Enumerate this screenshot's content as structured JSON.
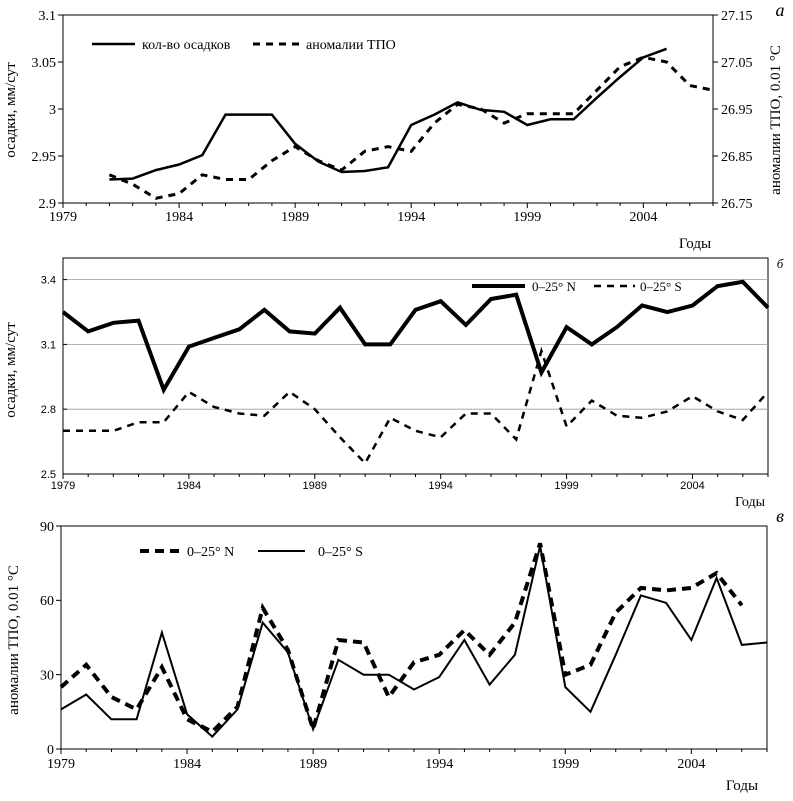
{
  "chart_data": [
    {
      "type": "line",
      "panel_letter": "а",
      "xlabel": "Годы",
      "ylabel": "осадки, мм/сут",
      "ylabel_right": "аномалии ТПО, 0.01 °С",
      "xlim": [
        1979,
        2007
      ],
      "ylim": [
        2.9,
        3.1
      ],
      "ylim_right": [
        26.75,
        27.15
      ],
      "x_ticks": [
        1979,
        1984,
        1989,
        1994,
        1999,
        2004
      ],
      "x_tick_labels": [
        "1979",
        "1984",
        "1989",
        "1994",
        "1999",
        "2004"
      ],
      "y_ticks": [
        2.9,
        2.95,
        3.0,
        3.05,
        3.1
      ],
      "y_tick_labels": [
        "2.9",
        "2.95",
        "3",
        "3.05",
        "3.1"
      ],
      "y_ticks_right": [
        26.75,
        26.85,
        26.95,
        27.05,
        27.15
      ],
      "y_tick_labels_right": [
        "26.75",
        "26.85",
        "26.95",
        "27.05",
        "27.15"
      ],
      "legend_position": "top-left",
      "series": [
        {
          "name": "кол-во осадков",
          "style": "solid",
          "axis": "left",
          "x": [
            1981,
            1982,
            1983,
            1984,
            1985,
            1986,
            1987,
            1988,
            1989,
            1990,
            1991,
            1992,
            1993,
            1994,
            1995,
            1996,
            1997,
            1998,
            1999,
            2000,
            2001,
            2002,
            2003,
            2004,
            2005
          ],
          "values": [
            2.925,
            2.926,
            2.935,
            2.941,
            2.951,
            2.994,
            2.994,
            2.994,
            2.963,
            2.944,
            2.933,
            2.934,
            2.938,
            2.983,
            2.994,
            3.007,
            2.999,
            2.997,
            2.983,
            2.989,
            2.989,
            3.012,
            3.034,
            3.055,
            3.064
          ]
        },
        {
          "name": "аномалии ТПО",
          "style": "dashed",
          "axis": "right",
          "x": [
            1981,
            1982,
            1983,
            1984,
            1985,
            1986,
            1987,
            1988,
            1989,
            1990,
            1991,
            1992,
            1993,
            1994,
            1995,
            1996,
            1997,
            1998,
            1999,
            2000,
            2001,
            2002,
            2003,
            2004,
            2005,
            2006,
            2007
          ],
          "values": [
            26.81,
            26.79,
            26.76,
            26.77,
            26.81,
            26.8,
            26.8,
            26.84,
            26.87,
            26.84,
            26.82,
            26.86,
            26.87,
            26.86,
            26.92,
            26.96,
            26.95,
            26.92,
            26.94,
            26.94,
            26.94,
            26.99,
            27.04,
            27.06,
            27.05,
            27.0,
            26.99
          ]
        }
      ]
    },
    {
      "type": "line",
      "panel_letter": "б",
      "xlabel": "Годы",
      "ylabel": "осадки, мм/сут",
      "xlim": [
        1979,
        2007
      ],
      "ylim": [
        2.5,
        3.5
      ],
      "x_ticks": [
        1979,
        1984,
        1989,
        1994,
        1999,
        2004
      ],
      "x_tick_labels": [
        "1979",
        "1984",
        "1989",
        "1994",
        "1999",
        "2004"
      ],
      "y_ticks": [
        2.5,
        2.8,
        3.1,
        3.4
      ],
      "y_tick_labels": [
        "2.5",
        "2.8",
        "3.1",
        "3.4"
      ],
      "grid": true,
      "legend_position": "top-right",
      "series": [
        {
          "name": "0–25° N",
          "style": "solid-thick",
          "x": [
            1979,
            1980,
            1981,
            1982,
            1983,
            1984,
            1985,
            1986,
            1987,
            1988,
            1989,
            1990,
            1991,
            1992,
            1993,
            1994,
            1995,
            1996,
            1997,
            1998,
            1999,
            2000,
            2001,
            2002,
            2003,
            2004,
            2005,
            2006,
            2007
          ],
          "values": [
            3.25,
            3.16,
            3.2,
            3.21,
            2.89,
            3.09,
            3.13,
            3.17,
            3.26,
            3.16,
            3.15,
            3.27,
            3.1,
            3.1,
            3.26,
            3.3,
            3.19,
            3.31,
            3.33,
            2.97,
            3.18,
            3.1,
            3.18,
            3.28,
            3.25,
            3.28,
            3.37,
            3.39,
            3.27
          ]
        },
        {
          "name": "0–25° S",
          "style": "dashed",
          "x": [
            1979,
            1980,
            1981,
            1982,
            1983,
            1984,
            1985,
            1986,
            1987,
            1988,
            1989,
            1990,
            1991,
            1992,
            1993,
            1994,
            1995,
            1996,
            1997,
            1998,
            1999,
            2000,
            2001,
            2002,
            2003,
            2004,
            2005,
            2006,
            2007
          ],
          "values": [
            2.7,
            2.7,
            2.7,
            2.74,
            2.74,
            2.88,
            2.81,
            2.78,
            2.77,
            2.88,
            2.8,
            2.67,
            2.55,
            2.76,
            2.7,
            2.67,
            2.78,
            2.78,
            2.66,
            3.07,
            2.72,
            2.84,
            2.77,
            2.76,
            2.79,
            2.86,
            2.79,
            2.75,
            2.88
          ]
        }
      ]
    },
    {
      "type": "line",
      "panel_letter": "в",
      "xlabel": "Годы",
      "ylabel": "аномалии ТПО, 0.01 °С",
      "xlim": [
        1979,
        2007
      ],
      "ylim": [
        0,
        90
      ],
      "x_ticks": [
        1979,
        1984,
        1989,
        1994,
        1999,
        2004
      ],
      "x_tick_labels": [
        "1979",
        "1984",
        "1989",
        "1994",
        "1999",
        "2004"
      ],
      "y_ticks": [
        0,
        30,
        60,
        90
      ],
      "y_tick_labels": [
        "0",
        "30",
        "60",
        "90"
      ],
      "legend_position": "top-left",
      "series": [
        {
          "name": "0–25° N",
          "style": "dashed-thick",
          "x": [
            1979,
            1980,
            1981,
            1982,
            1983,
            1984,
            1985,
            1986,
            1987,
            1988,
            1989,
            1990,
            1991,
            1992,
            1993,
            1994,
            1995,
            1996,
            1997,
            1998,
            1999,
            2000,
            2001,
            2002,
            2003,
            2004,
            2005,
            2006,
            2007
          ],
          "values": [
            25,
            34,
            21,
            16,
            33,
            12,
            7,
            17,
            57,
            40,
            8,
            44,
            43,
            21,
            35,
            38,
            48,
            38,
            51,
            83,
            30,
            34,
            55,
            65,
            64,
            65,
            71,
            58,
            null
          ]
        },
        {
          "name": "0–25° S",
          "style": "solid",
          "x": [
            1979,
            1980,
            1981,
            1982,
            1983,
            1984,
            1985,
            1986,
            1987,
            1988,
            1989,
            1990,
            1991,
            1992,
            1993,
            1994,
            1995,
            1996,
            1997,
            1998,
            1999,
            2000,
            2001,
            2002,
            2003,
            2004,
            2005,
            2006,
            2007
          ],
          "values": [
            16,
            22,
            12,
            12,
            47,
            14,
            5,
            16,
            51,
            39,
            8,
            36,
            30,
            30,
            24,
            29,
            44,
            26,
            38,
            82,
            25,
            15,
            38,
            62,
            59,
            44,
            69,
            42,
            43
          ]
        }
      ]
    }
  ]
}
